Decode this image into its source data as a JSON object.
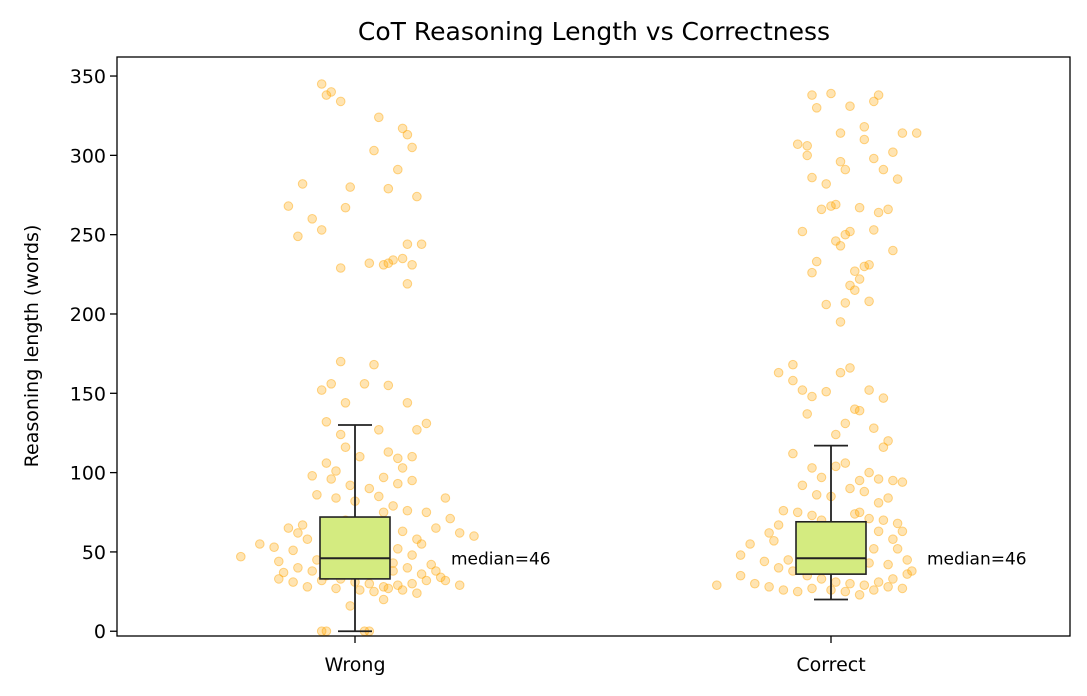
{
  "chart_data": {
    "type": "box",
    "title": "CoT Reasoning Length vs Correctness",
    "xlabel": "",
    "ylabel": "Reasoning length (words)",
    "categories": [
      "Wrong",
      "Correct"
    ],
    "ylim": [
      -3,
      362
    ],
    "yticks": [
      0,
      50,
      100,
      150,
      200,
      250,
      300,
      350
    ],
    "grid": false,
    "legend": "none",
    "colors": {
      "points": "#FFA500",
      "box_fill": "#D4EB80",
      "box_edge": "#222222"
    },
    "boxes": [
      {
        "category": "Wrong",
        "whisker_low": 0,
        "q1": 33,
        "median": 46,
        "q3": 72,
        "whisker_high": 130,
        "annotation": "median=46"
      },
      {
        "category": "Correct",
        "whisker_low": 20,
        "q1": 36,
        "median": 46,
        "q3": 69,
        "whisker_high": 117,
        "annotation": "median=46"
      }
    ],
    "points": {
      "Wrong": [
        [
          -0.14,
          268
        ],
        [
          -0.11,
          282
        ],
        [
          -0.09,
          260
        ],
        [
          -0.12,
          249
        ],
        [
          -0.07,
          253
        ],
        [
          -0.02,
          267
        ],
        [
          -0.01,
          280
        ],
        [
          0.05,
          324
        ],
        [
          0.04,
          303
        ],
        [
          0.03,
          232
        ],
        [
          0.08,
          234
        ],
        [
          0.07,
          279
        ],
        [
          0.1,
          317
        ],
        [
          0.11,
          313
        ],
        [
          0.12,
          305
        ],
        [
          0.13,
          274
        ],
        [
          0.11,
          244
        ],
        [
          0.14,
          244
        ],
        [
          0.1,
          235
        ],
        [
          0.11,
          219
        ],
        [
          0.12,
          231
        ],
        [
          -0.07,
          345
        ],
        [
          -0.06,
          338
        ],
        [
          -0.05,
          340
        ],
        [
          -0.03,
          334
        ],
        [
          0.06,
          231
        ],
        [
          -0.03,
          229
        ],
        [
          0.07,
          232
        ],
        [
          0.09,
          291
        ],
        [
          -0.03,
          170
        ],
        [
          -0.07,
          152
        ],
        [
          -0.05,
          156
        ],
        [
          -0.02,
          144
        ],
        [
          0.02,
          156
        ],
        [
          0.04,
          168
        ],
        [
          0.07,
          155
        ],
        [
          0.11,
          144
        ],
        [
          0.13,
          127
        ],
        [
          0.05,
          127
        ],
        [
          -0.06,
          132
        ],
        [
          -0.03,
          124
        ],
        [
          -0.02,
          116
        ],
        [
          0.01,
          110
        ],
        [
          -0.06,
          106
        ],
        [
          -0.04,
          101
        ],
        [
          0.07,
          113
        ],
        [
          0.09,
          109
        ],
        [
          0.1,
          103
        ],
        [
          0.12,
          110
        ],
        [
          0.15,
          131
        ],
        [
          -0.09,
          98
        ],
        [
          -0.05,
          96
        ],
        [
          -0.01,
          92
        ],
        [
          0.03,
          90
        ],
        [
          0.06,
          97
        ],
        [
          0.09,
          93
        ],
        [
          0.12,
          95
        ],
        [
          -0.08,
          86
        ],
        [
          -0.04,
          84
        ],
        [
          0.0,
          82
        ],
        [
          0.05,
          85
        ],
        [
          0.08,
          79
        ],
        [
          0.11,
          76
        ],
        [
          0.15,
          75
        ],
        [
          0.19,
          84
        ],
        [
          -0.14,
          65
        ],
        [
          -0.12,
          62
        ],
        [
          -0.1,
          58
        ],
        [
          -0.13,
          51
        ],
        [
          -0.17,
          53
        ],
        [
          -0.2,
          55
        ],
        [
          -0.24,
          47
        ],
        [
          -0.16,
          44
        ],
        [
          -0.12,
          40
        ],
        [
          -0.09,
          38
        ],
        [
          -0.06,
          35
        ],
        [
          -0.03,
          33
        ],
        [
          0.0,
          31
        ],
        [
          0.03,
          30
        ],
        [
          0.06,
          28
        ],
        [
          0.09,
          29
        ],
        [
          0.12,
          30
        ],
        [
          0.15,
          32
        ],
        [
          0.18,
          34
        ],
        [
          0.22,
          29
        ],
        [
          0.25,
          60
        ],
        [
          0.22,
          62
        ],
        [
          0.2,
          71
        ],
        [
          0.17,
          65
        ],
        [
          0.14,
          55
        ],
        [
          0.16,
          42
        ],
        [
          0.11,
          40
        ],
        [
          0.08,
          38
        ],
        [
          -0.07,
          32
        ],
        [
          -0.1,
          28
        ],
        [
          -0.13,
          31
        ],
        [
          -0.16,
          33
        ],
        [
          -0.04,
          27
        ],
        [
          0.01,
          26
        ],
        [
          0.04,
          25
        ],
        [
          0.07,
          27
        ],
        [
          0.1,
          26
        ],
        [
          0.13,
          24
        ],
        [
          -0.01,
          16
        ],
        [
          0.06,
          20
        ],
        [
          -0.07,
          0
        ],
        [
          -0.06,
          0
        ],
        [
          0.03,
          0
        ],
        [
          0.02,
          0
        ],
        [
          -0.01,
          40
        ],
        [
          0.02,
          45
        ],
        [
          0.04,
          50
        ],
        [
          -0.03,
          55
        ],
        [
          0.01,
          60
        ],
        [
          0.05,
          65
        ],
        [
          -0.02,
          70
        ],
        [
          0.06,
          75
        ],
        [
          0.09,
          52
        ],
        [
          0.12,
          48
        ],
        [
          -0.05,
          48
        ],
        [
          -0.08,
          45
        ],
        [
          0.1,
          63
        ],
        [
          0.13,
          58
        ],
        [
          -0.11,
          67
        ],
        [
          0.08,
          43
        ],
        [
          0.14,
          36
        ],
        [
          -0.15,
          37
        ],
        [
          0.17,
          38
        ],
        [
          0.19,
          32
        ]
      ],
      "Correct": [
        [
          -0.07,
          307
        ],
        [
          -0.04,
          286
        ],
        [
          -0.01,
          282
        ],
        [
          -0.05,
          300
        ],
        [
          -0.06,
          252
        ],
        [
          -0.04,
          226
        ],
        [
          -0.03,
          233
        ],
        [
          -0.02,
          266
        ],
        [
          0.0,
          268
        ],
        [
          0.01,
          246
        ],
        [
          0.03,
          250
        ],
        [
          0.05,
          227
        ],
        [
          0.07,
          230
        ],
        [
          0.08,
          231
        ],
        [
          0.06,
          267
        ],
        [
          0.1,
          264
        ],
        [
          0.12,
          266
        ],
        [
          0.11,
          291
        ],
        [
          0.14,
          285
        ],
        [
          0.09,
          298
        ],
        [
          0.03,
          291
        ],
        [
          0.02,
          314
        ],
        [
          -0.04,
          338
        ],
        [
          -0.03,
          330
        ],
        [
          0.0,
          339
        ],
        [
          0.04,
          331
        ],
        [
          0.1,
          338
        ],
        [
          0.09,
          334
        ],
        [
          0.13,
          302
        ],
        [
          0.15,
          314
        ],
        [
          0.18,
          314
        ],
        [
          0.07,
          310
        ],
        [
          0.04,
          252
        ],
        [
          0.13,
          240
        ],
        [
          0.08,
          208
        ],
        [
          0.06,
          222
        ],
        [
          0.05,
          215
        ],
        [
          0.03,
          207
        ],
        [
          -0.01,
          206
        ],
        [
          0.02,
          195
        ],
        [
          0.04,
          218
        ],
        [
          0.09,
          253
        ],
        [
          0.01,
          269
        ],
        [
          0.02,
          296
        ],
        [
          -0.05,
          306
        ],
        [
          0.07,
          318
        ],
        [
          0.02,
          243
        ],
        [
          -0.11,
          163
        ],
        [
          -0.08,
          168
        ],
        [
          -0.06,
          152
        ],
        [
          -0.04,
          148
        ],
        [
          -0.01,
          151
        ],
        [
          0.02,
          163
        ],
        [
          0.04,
          166
        ],
        [
          0.06,
          139
        ],
        [
          0.08,
          152
        ],
        [
          0.11,
          147
        ],
        [
          -0.08,
          158
        ],
        [
          -0.05,
          137
        ],
        [
          0.01,
          124
        ],
        [
          0.03,
          131
        ],
        [
          0.05,
          140
        ],
        [
          0.09,
          128
        ],
        [
          0.12,
          120
        ],
        [
          0.11,
          116
        ],
        [
          -0.08,
          112
        ],
        [
          -0.04,
          103
        ],
        [
          -0.02,
          97
        ],
        [
          0.01,
          104
        ],
        [
          0.03,
          106
        ],
        [
          0.06,
          95
        ],
        [
          0.08,
          100
        ],
        [
          0.1,
          96
        ],
        [
          0.13,
          95
        ],
        [
          0.15,
          94
        ],
        [
          -0.06,
          92
        ],
        [
          -0.03,
          86
        ],
        [
          0.0,
          85
        ],
        [
          0.04,
          90
        ],
        [
          0.07,
          88
        ],
        [
          0.1,
          81
        ],
        [
          0.12,
          84
        ],
        [
          -0.1,
          76
        ],
        [
          -0.07,
          75
        ],
        [
          -0.04,
          73
        ],
        [
          0.05,
          74
        ],
        [
          0.08,
          71
        ],
        [
          0.11,
          70
        ],
        [
          0.14,
          68
        ],
        [
          -0.13,
          62
        ],
        [
          -0.12,
          57
        ],
        [
          -0.17,
          55
        ],
        [
          -0.19,
          48
        ],
        [
          -0.14,
          44
        ],
        [
          -0.11,
          40
        ],
        [
          -0.08,
          38
        ],
        [
          -0.05,
          35
        ],
        [
          -0.02,
          33
        ],
        [
          0.01,
          31
        ],
        [
          0.04,
          30
        ],
        [
          0.07,
          29
        ],
        [
          0.1,
          31
        ],
        [
          0.13,
          33
        ],
        [
          0.16,
          36
        ],
        [
          -0.24,
          29
        ],
        [
          -0.19,
          35
        ],
        [
          -0.16,
          30
        ],
        [
          -0.13,
          28
        ],
        [
          -0.1,
          26
        ],
        [
          -0.07,
          25
        ],
        [
          -0.04,
          27
        ],
        [
          0.0,
          26
        ],
        [
          0.03,
          25
        ],
        [
          0.06,
          23
        ],
        [
          0.09,
          26
        ],
        [
          0.12,
          28
        ],
        [
          0.15,
          27
        ],
        [
          0.16,
          45
        ],
        [
          0.14,
          52
        ],
        [
          0.13,
          58
        ],
        [
          0.15,
          63
        ],
        [
          0.12,
          42
        ],
        [
          -0.01,
          40
        ],
        [
          0.02,
          45
        ],
        [
          0.04,
          50
        ],
        [
          -0.03,
          55
        ],
        [
          0.01,
          60
        ],
        [
          0.05,
          65
        ],
        [
          -0.02,
          70
        ],
        [
          0.06,
          75
        ],
        [
          0.09,
          52
        ],
        [
          -0.06,
          48
        ],
        [
          -0.09,
          45
        ],
        [
          0.1,
          63
        ],
        [
          -0.11,
          67
        ],
        [
          0.08,
          43
        ],
        [
          0.17,
          38
        ]
      ]
    }
  }
}
